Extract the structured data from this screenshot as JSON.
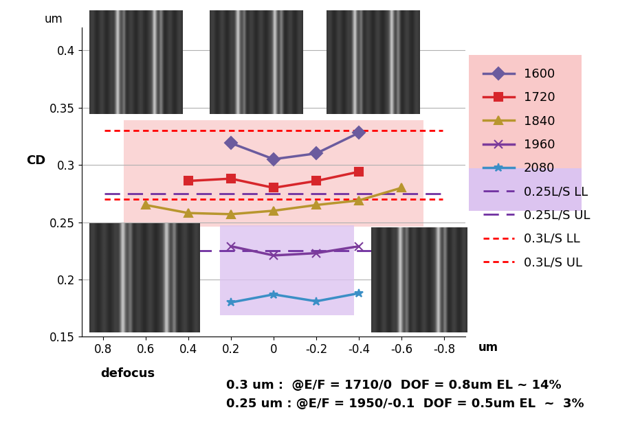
{
  "chart_data": {
    "type": "line",
    "y_label": "CD",
    "y_unit": "um",
    "x_label": "defocus",
    "x_unit": "um",
    "x": [
      0.6,
      0.4,
      0.2,
      0,
      -0.2,
      -0.4,
      -0.6
    ],
    "xlim": [
      0.9,
      -0.9
    ],
    "xticks": [
      0.8,
      0.6,
      0.4,
      0.2,
      0,
      -0.2,
      -0.4,
      -0.6,
      -0.8
    ],
    "ylim": [
      0.15,
      0.42
    ],
    "yticks": [
      0.15,
      0.2,
      0.25,
      0.3,
      0.35,
      0.4
    ],
    "grid": true,
    "legend": "right",
    "series": [
      {
        "name": "1600",
        "color": "#6b5b9e",
        "marker": "diamond",
        "line_style": "solid",
        "values": [
          null,
          null,
          0.319,
          0.305,
          0.31,
          0.328,
          null
        ]
      },
      {
        "name": "1720",
        "color": "#d7262b",
        "marker": "square",
        "line_style": "solid",
        "values": [
          null,
          0.286,
          0.288,
          0.28,
          0.286,
          0.294,
          null
        ]
      },
      {
        "name": "1840",
        "color": "#b8962e",
        "marker": "triangle",
        "line_style": "solid",
        "values": [
          0.265,
          0.258,
          0.257,
          0.26,
          0.265,
          0.269,
          0.28
        ]
      },
      {
        "name": "1960",
        "color": "#7b3b9b",
        "marker": "x",
        "line_style": "solid",
        "values": [
          null,
          null,
          0.229,
          0.221,
          0.223,
          0.229,
          null
        ]
      },
      {
        "name": "2080",
        "color": "#3b8fc6",
        "marker": "star",
        "line_style": "solid",
        "values": [
          null,
          null,
          0.18,
          0.187,
          0.181,
          0.188,
          null
        ]
      }
    ],
    "reference_lines": [
      {
        "name": "0.25L/S LL",
        "value": 0.225,
        "color": "#7030a0",
        "line_style": "dashed"
      },
      {
        "name": "0.25L/S UL",
        "value": 0.275,
        "color": "#7030a0",
        "line_style": "dashed"
      },
      {
        "name": "0.3L/S LL",
        "value": 0.27,
        "color": "#ff0000",
        "line_style": "dotted"
      },
      {
        "name": "0.3L/S UL",
        "value": 0.33,
        "color": "#ff0000",
        "line_style": "dotted"
      }
    ],
    "annotations": [
      "0.3 um :  @E/F = 1710/0  DOF = 0.8um EL ~ 14%",
      "0.25 um : @E/F = 1950/-0.1  DOF = 0.5um EL  ~  3%"
    ]
  }
}
